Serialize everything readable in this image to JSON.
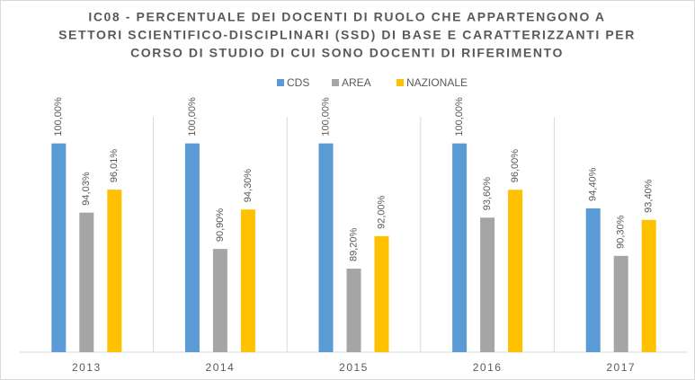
{
  "chart_data": {
    "type": "bar",
    "title": [
      "IC08 - PERCENTUALE DEI DOCENTI DI RUOLO CHE APPARTENGONO A",
      "SETTORI SCIENTIFICO-DISCIPLINARI (SSD) DI BASE E CARATTERIZZANTI PER",
      "CORSO DI STUDIO DI CUI SONO DOCENTI DI RIFERIMENTO"
    ],
    "categories": [
      "2013",
      "2014",
      "2015",
      "2016",
      "2017"
    ],
    "series": [
      {
        "name": "CDS",
        "color": "#5b9bd5",
        "values": [
          100,
          100,
          100,
          100,
          94.4
        ],
        "value_labels": [
          "100,00%",
          "100,00%",
          "100,00%",
          "100,00%",
          "94,40%"
        ]
      },
      {
        "name": "AREA",
        "color": "#a5a5a5",
        "values": [
          94.03,
          90.9,
          89.2,
          93.6,
          90.3
        ],
        "value_labels": [
          "94,03%",
          "90,90%",
          "89,20%",
          "93,60%",
          "90,30%"
        ]
      },
      {
        "name": "NAZIONALE",
        "color": "#ffc000",
        "values": [
          96.01,
          94.3,
          92.0,
          96.0,
          93.4
        ],
        "value_labels": [
          "96,01%",
          "94,30%",
          "92,00%",
          "96,00%",
          "93,40%"
        ]
      }
    ],
    "ylim": [
      82,
      104
    ],
    "legend": "top"
  }
}
